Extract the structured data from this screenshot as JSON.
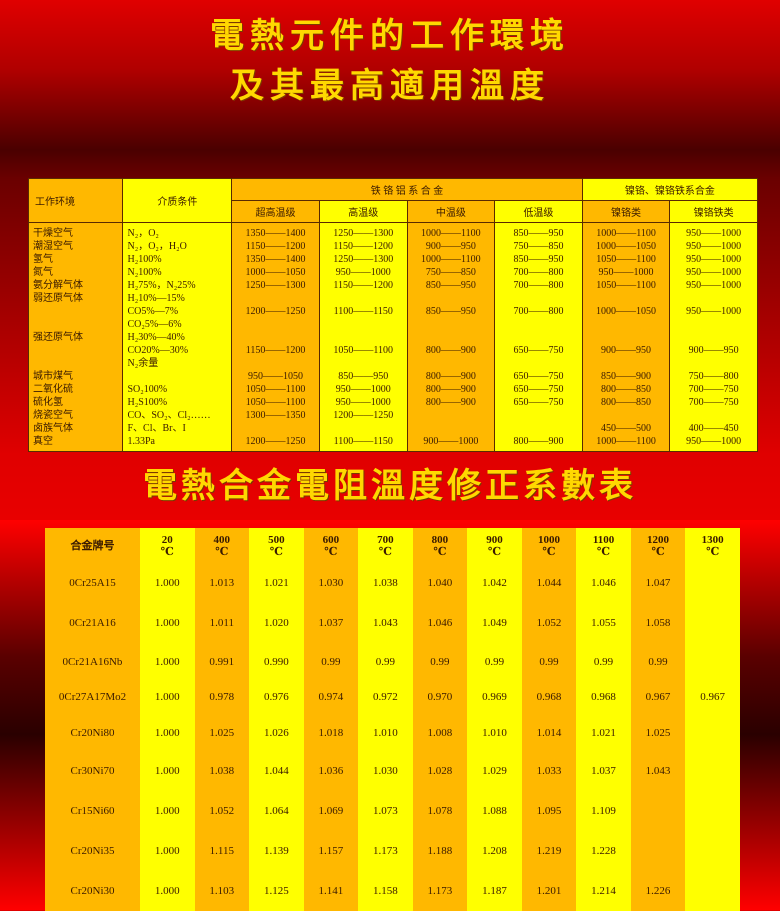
{
  "titles": {
    "line1": "電熱元件的工作環境",
    "line2": "及其最高適用溫度",
    "table2": "電熱合金電阻溫度修正系數表"
  },
  "env_table": {
    "headers": {
      "environment": "工作环境",
      "medium": "介质条件",
      "group_fecral": "铁 铬 铝 系 合 金",
      "group_nicr": "镍铬、镍铬铁系合金",
      "sub": [
        "超高温级",
        "高温级",
        "中温级",
        "低温级",
        "镍铬类",
        "镍铬铁类"
      ]
    },
    "rows": [
      {
        "env": "干燥空气",
        "medium": "N₂，O₂",
        "values": [
          "1350——1400",
          "1250——1300",
          "1000——1100",
          "850——950",
          "1000——1100",
          "950——1000"
        ]
      },
      {
        "env": "潮湿空气",
        "medium": "N₂，O₂，H₂O",
        "values": [
          "1150——1200",
          "1150——1200",
          "900——950",
          "750——850",
          "1000——1050",
          "950——1000"
        ]
      },
      {
        "env": "氢气",
        "medium": "H₂100%",
        "values": [
          "1350——1400",
          "1250——1300",
          "1000——1100",
          "850——950",
          "1050——1100",
          "950——1000"
        ]
      },
      {
        "env": "氮气",
        "medium": "N₂100%",
        "values": [
          "1000——1050",
          "950——1000",
          "750——850",
          "700——800",
          "950——1000",
          "950——1000"
        ]
      },
      {
        "env": "氨分解气体",
        "medium": "H₂75%，N₂25%",
        "values": [
          "1250——1300",
          "1150——1200",
          "850——950",
          "700——800",
          "1050——1100",
          "950——1000"
        ]
      },
      {
        "env": "弱还原气体",
        "medium": "H₂10%—15%",
        "values": [
          "",
          "",
          "",
          "",
          "",
          ""
        ]
      },
      {
        "env": "",
        "medium": "CO5%—7%",
        "values": [
          "1200——1250",
          "1100——1150",
          "850——950",
          "700——800",
          "1000——1050",
          "950——1000"
        ]
      },
      {
        "env": "",
        "medium": "CO₂5%—6%",
        "values": [
          "",
          "",
          "",
          "",
          "",
          ""
        ]
      },
      {
        "env": "强还原气体",
        "medium": "H₂30%—40%",
        "values": [
          "",
          "",
          "",
          "",
          "",
          ""
        ]
      },
      {
        "env": "",
        "medium": "CO20%—30%",
        "values": [
          "1150——1200",
          "1050——1100",
          "800——900",
          "650——750",
          "900——950",
          "900——950"
        ]
      },
      {
        "env": "",
        "medium": "N₂余量",
        "values": [
          "",
          "",
          "",
          "",
          "",
          ""
        ]
      },
      {
        "env": "城市煤气",
        "medium": "",
        "values": [
          "950——1050",
          "850——950",
          "800——900",
          "650——750",
          "850——900",
          "750——800"
        ]
      },
      {
        "env": "二氧化硫",
        "medium": "SO₂100%",
        "values": [
          "1050——1100",
          "950——1000",
          "800——900",
          "650——750",
          "800——850",
          "700——750"
        ]
      },
      {
        "env": "硫化氢",
        "medium": "H₂S100%",
        "values": [
          "1050——1100",
          "950——1000",
          "800——900",
          "650——750",
          "800——850",
          "700——750"
        ]
      },
      {
        "env": "烧瓷空气",
        "medium": "CO、SO₂、Cl₂……",
        "values": [
          "1300——1350",
          "1200——1250",
          "",
          "",
          "",
          ""
        ]
      },
      {
        "env": "卤族气体",
        "medium": "F、Cl、Br、I",
        "values": [
          "",
          "",
          "",
          "",
          "450——500",
          "400——450"
        ]
      },
      {
        "env": "真空",
        "medium": "1.33Pa",
        "values": [
          "1200——1250",
          "1100——1150",
          "900——1000",
          "800——900",
          "1000——1100",
          "950——1000"
        ]
      }
    ]
  },
  "coef_table": {
    "header_label": "合金牌号",
    "unit": "℃",
    "temps": [
      "20",
      "400",
      "500",
      "600",
      "700",
      "800",
      "900",
      "1000",
      "1100",
      "1200",
      "1300"
    ],
    "rows": [
      {
        "alloy": "0Cr25A15",
        "values": [
          "1.000",
          "1.013",
          "1.021",
          "1.030",
          "1.038",
          "1.040",
          "1.042",
          "1.044",
          "1.046",
          "1.047",
          ""
        ]
      },
      {
        "alloy": "0Cr21A16",
        "values": [
          "1.000",
          "1.011",
          "1.020",
          "1.037",
          "1.043",
          "1.046",
          "1.049",
          "1.052",
          "1.055",
          "1.058",
          ""
        ]
      },
      {
        "alloy": "0Cr21A16Nb",
        "values": [
          "1.000",
          "0.991",
          "0.990",
          "0.99",
          "0.99",
          "0.99",
          "0.99",
          "0.99",
          "0.99",
          "0.99",
          ""
        ]
      },
      {
        "alloy": "0Cr27A17Mo2",
        "values": [
          "1.000",
          "0.978",
          "0.976",
          "0.974",
          "0.972",
          "0.970",
          "0.969",
          "0.968",
          "0.968",
          "0.967",
          "0.967"
        ]
      },
      {
        "alloy": "Cr20Ni80",
        "values": [
          "1.000",
          "1.025",
          "1.026",
          "1.018",
          "1.010",
          "1.008",
          "1.010",
          "1.014",
          "1.021",
          "1.025",
          ""
        ]
      },
      {
        "alloy": "Cr30Ni70",
        "values": [
          "1.000",
          "1.038",
          "1.044",
          "1.036",
          "1.030",
          "1.028",
          "1.029",
          "1.033",
          "1.037",
          "1.043",
          ""
        ]
      },
      {
        "alloy": "Cr15Ni60",
        "values": [
          "1.000",
          "1.052",
          "1.064",
          "1.069",
          "1.073",
          "1.078",
          "1.088",
          "1.095",
          "1.109",
          "",
          ""
        ]
      },
      {
        "alloy": "Cr20Ni35",
        "values": [
          "1.000",
          "1.115",
          "1.139",
          "1.157",
          "1.173",
          "1.188",
          "1.208",
          "1.219",
          "1.228",
          "",
          ""
        ]
      },
      {
        "alloy": "Cr20Ni30",
        "values": [
          "1.000",
          "1.103",
          "1.125",
          "1.141",
          "1.158",
          "1.173",
          "1.187",
          "1.201",
          "1.214",
          "1.226",
          ""
        ]
      }
    ]
  },
  "colors": {
    "orange": "#ffb800",
    "yellow": "#ffff00",
    "title": "#ffd800",
    "background": "#e00000"
  }
}
